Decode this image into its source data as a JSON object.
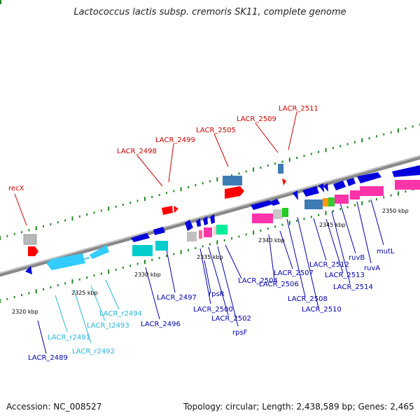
{
  "title": "Lactococcus lactis subsp. cremoris SK11, complete genome",
  "footer": {
    "accession": "Accession: NC_008527",
    "summary": "Topology: circular; Length: 2,438,589 bp; Genes: 2,465"
  },
  "colors": {
    "red_label": "#cc0000",
    "blue_label": "#0000aa",
    "rna_label": "#29b6d6",
    "gene_blue": "#0000dd",
    "gene_red": "#ff0000",
    "rrna": "#33ccff",
    "tick": "#228822"
  },
  "scale_labels": [
    "2320 kbp",
    "2325 kbp",
    "2330 kbp",
    "2335 kbp",
    "2340 kbp",
    "2345 kbp",
    "2350 kbp"
  ],
  "labels": {
    "top": [
      "recX",
      "LACR_2498",
      "LACR_2499",
      "LACR_2505",
      "LACR_2509",
      "LACR_2511"
    ],
    "rna": [
      "LACR_r2491",
      "LACR_r2492",
      "LACR_t2493",
      "LACR_r2494"
    ],
    "bottom": [
      "LACR_2489",
      "LACR_2496",
      "LACR_2497",
      "rpsR",
      "LACR_2500",
      "LACR_2502",
      "rpsF",
      "LACR_2504",
      "LACR_2506",
      "LACR_2507",
      "LACR_2508",
      "LACR_2510",
      "LACR_2512",
      "LACR_2513",
      "LACR_2514",
      "ruvB",
      "ruvA",
      "mutL"
    ]
  }
}
